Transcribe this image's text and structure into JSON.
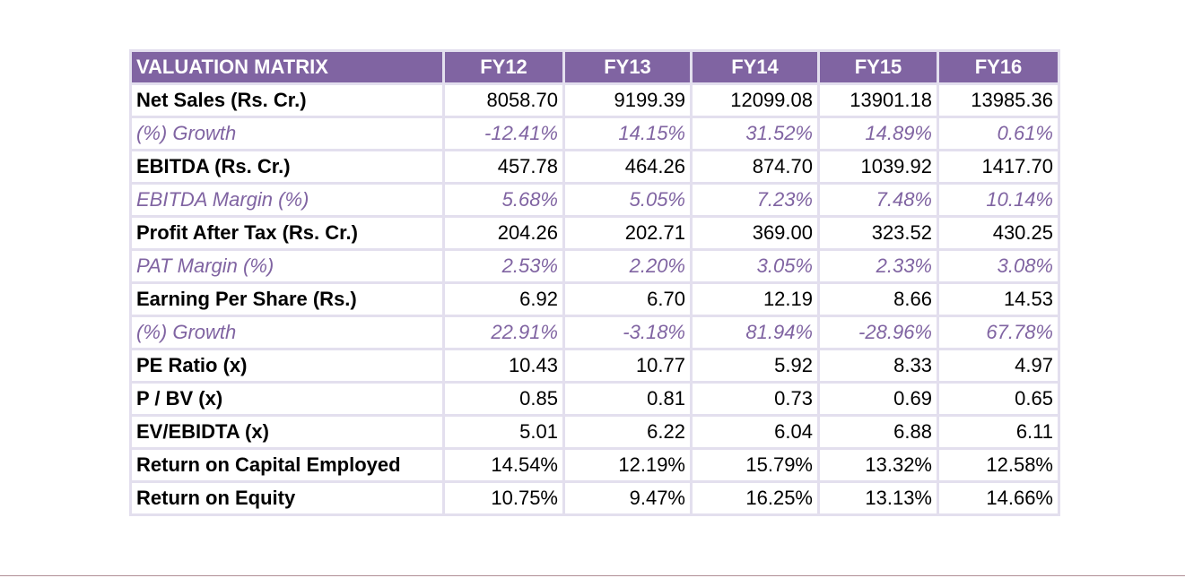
{
  "table": {
    "header": [
      "VALUATION MATRIX",
      "FY12",
      "FY13",
      "FY14",
      "FY15",
      "FY16"
    ],
    "rows": [
      {
        "label": "Net Sales (Rs. Cr.)",
        "style": "bold",
        "values": [
          "8058.70",
          "9199.39",
          "12099.08",
          "13901.18",
          "13985.36"
        ]
      },
      {
        "label": "(%) Growth",
        "style": "ital",
        "values": [
          "-12.41%",
          "14.15%",
          "31.52%",
          "14.89%",
          "0.61%"
        ]
      },
      {
        "label": "EBITDA (Rs. Cr.)",
        "style": "bold",
        "values": [
          "457.78",
          "464.26",
          "874.70",
          "1039.92",
          "1417.70"
        ]
      },
      {
        "label": "EBITDA Margin (%)",
        "style": "ital",
        "values": [
          "5.68%",
          "5.05%",
          "7.23%",
          "7.48%",
          "10.14%"
        ]
      },
      {
        "label": "Profit After Tax (Rs. Cr.)",
        "style": "bold",
        "values": [
          "204.26",
          "202.71",
          "369.00",
          "323.52",
          "430.25"
        ]
      },
      {
        "label": "PAT Margin (%)",
        "style": "ital",
        "values": [
          "2.53%",
          "2.20%",
          "3.05%",
          "2.33%",
          "3.08%"
        ]
      },
      {
        "label": "Earning Per Share (Rs.)",
        "style": "bold",
        "values": [
          "6.92",
          "6.70",
          "12.19",
          "8.66",
          "14.53"
        ]
      },
      {
        "label": "(%) Growth",
        "style": "ital",
        "values": [
          "22.91%",
          "-3.18%",
          "81.94%",
          "-28.96%",
          "67.78%"
        ]
      },
      {
        "label": "PE Ratio (x)",
        "style": "bold",
        "values": [
          "10.43",
          "10.77",
          "5.92",
          "8.33",
          "4.97"
        ]
      },
      {
        "label": "P / BV (x)",
        "style": "bold",
        "values": [
          "0.85",
          "0.81",
          "0.73",
          "0.69",
          "0.65"
        ]
      },
      {
        "label": "EV/EBIDTA (x)",
        "style": "bold",
        "values": [
          "5.01",
          "6.22",
          "6.04",
          "6.88",
          "6.11"
        ]
      },
      {
        "label": "Return on Capital Employed",
        "style": "bold",
        "values": [
          "14.54%",
          "12.19%",
          "15.79%",
          "13.32%",
          "12.58%"
        ]
      },
      {
        "label": "Return on Equity",
        "style": "bold",
        "values": [
          "10.75%",
          "9.47%",
          "16.25%",
          "13.13%",
          "14.66%"
        ]
      }
    ]
  },
  "colors": {
    "header_bg": "#8064a2",
    "accent_text": "#8064a2",
    "grid": "#e3dfee"
  }
}
